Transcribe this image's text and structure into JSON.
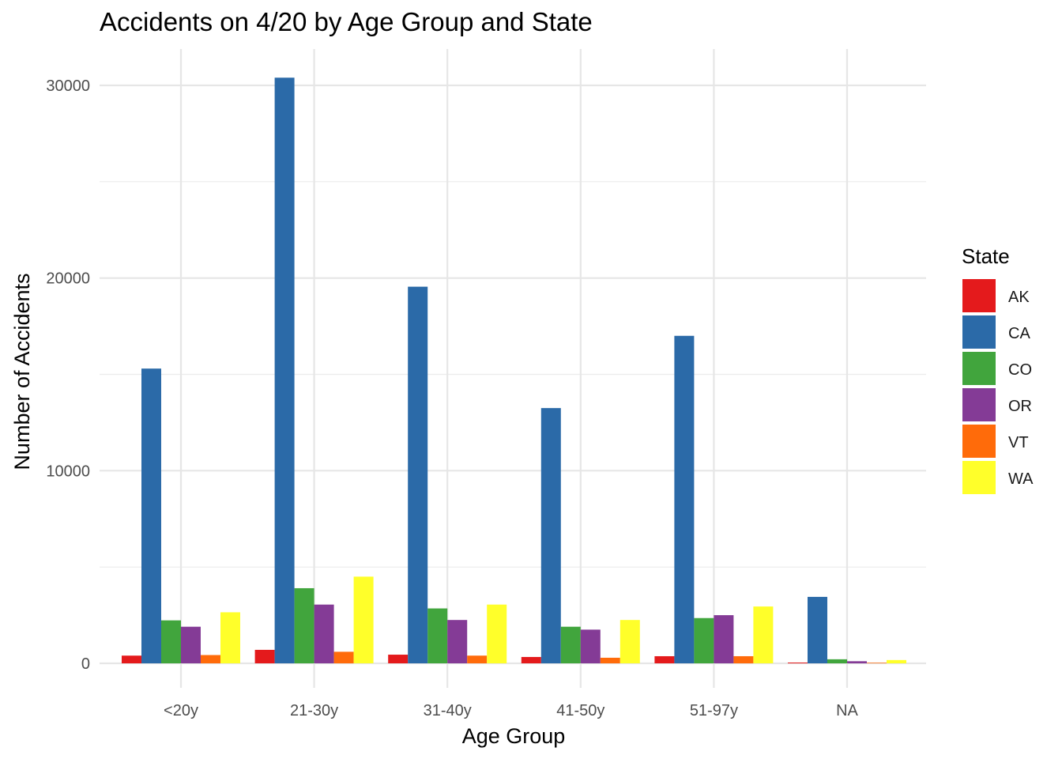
{
  "chart_data": {
    "type": "bar",
    "title": "Accidents on 4/20 by Age Group and State",
    "xlabel": "Age Group",
    "ylabel": "Number of Accidents",
    "categories": [
      "<20y",
      "21-30y",
      "31-40y",
      "41-50y",
      "51-97y",
      "NA"
    ],
    "ylim": [
      -1200,
      31000
    ],
    "yticks": [
      0,
      10000,
      20000,
      30000
    ],
    "grid": true,
    "legend_position": "right",
    "legend_title": "State",
    "series": [
      {
        "name": "AK",
        "color": "#E41A1C",
        "values": [
          400,
          700,
          450,
          330,
          370,
          40
        ]
      },
      {
        "name": "CA",
        "color": "#2B6AA8",
        "values": [
          15300,
          30400,
          19550,
          13250,
          17000,
          3450
        ]
      },
      {
        "name": "CO",
        "color": "#41A53D",
        "values": [
          2230,
          3900,
          2850,
          1900,
          2350,
          210
        ]
      },
      {
        "name": "OR",
        "color": "#843B96",
        "values": [
          1900,
          3050,
          2250,
          1750,
          2500,
          110
        ]
      },
      {
        "name": "VT",
        "color": "#FF6B0A",
        "values": [
          430,
          600,
          400,
          290,
          370,
          30
        ]
      },
      {
        "name": "WA",
        "color": "#FFFF2A",
        "values": [
          2650,
          4500,
          3050,
          2250,
          2950,
          170
        ]
      }
    ]
  }
}
